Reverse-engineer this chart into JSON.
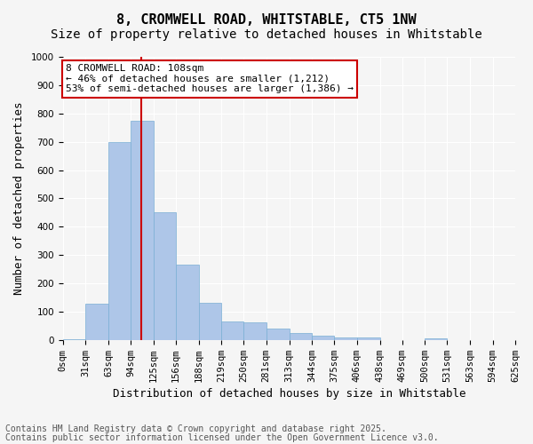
{
  "title_line1": "8, CROMWELL ROAD, WHITSTABLE, CT5 1NW",
  "title_line2": "Size of property relative to detached houses in Whitstable",
  "xlabel": "Distribution of detached houses by size in Whitstable",
  "ylabel": "Number of detached properties",
  "bin_edges": [
    0,
    31,
    63,
    94,
    125,
    156,
    188,
    219,
    250,
    281,
    313,
    344,
    375,
    406,
    438,
    469,
    500,
    531,
    563,
    594,
    625
  ],
  "bar_heights": [
    2,
    127,
    700,
    775,
    450,
    265,
    130,
    65,
    63,
    40,
    25,
    15,
    10,
    10,
    0,
    0,
    5,
    0,
    0,
    0
  ],
  "bar_color": "#aec6e8",
  "bar_edgecolor": "#7aafd4",
  "property_size": 108,
  "vline_color": "#cc0000",
  "annotation_text": "8 CROMWELL ROAD: 108sqm\n← 46% of detached houses are smaller (1,212)\n53% of semi-detached houses are larger (1,386) →",
  "annotation_box_color": "#ffffff",
  "annotation_box_edgecolor": "#cc0000",
  "ylim": [
    0,
    1000
  ],
  "yticks": [
    0,
    100,
    200,
    300,
    400,
    500,
    600,
    700,
    800,
    900,
    1000
  ],
  "background_color": "#f5f5f5",
  "grid_color": "#ffffff",
  "footer_line1": "Contains HM Land Registry data © Crown copyright and database right 2025.",
  "footer_line2": "Contains public sector information licensed under the Open Government Licence v3.0.",
  "title_fontsize": 11,
  "subtitle_fontsize": 10,
  "axis_label_fontsize": 9,
  "tick_fontsize": 7.5,
  "annotation_fontsize": 8,
  "footer_fontsize": 7
}
